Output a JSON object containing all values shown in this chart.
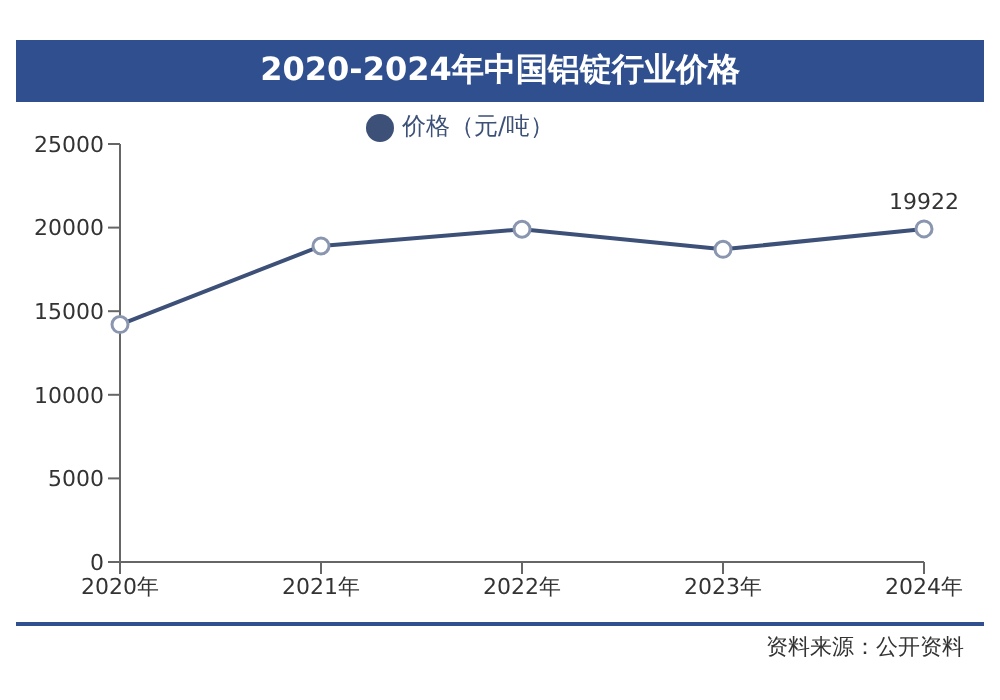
{
  "chart_data": {
    "type": "line",
    "title": "2020-2024年中国铝锭行业价格",
    "categories": [
      "2020年",
      "2021年",
      "2022年",
      "2023年",
      "2024年"
    ],
    "series": [
      {
        "name": "价格（元/吨）",
        "color": "#3d5078",
        "values": [
          14200,
          18900,
          19900,
          18700,
          19922
        ],
        "value_labels": [
          null,
          null,
          null,
          null,
          "19922"
        ]
      }
    ],
    "ylim": [
      0,
      25000
    ],
    "yticks": [
      0,
      5000,
      10000,
      15000,
      20000,
      25000
    ],
    "legend": "top",
    "marker": "circle",
    "annotations": [
      "资料来源：公开资料"
    ]
  }
}
